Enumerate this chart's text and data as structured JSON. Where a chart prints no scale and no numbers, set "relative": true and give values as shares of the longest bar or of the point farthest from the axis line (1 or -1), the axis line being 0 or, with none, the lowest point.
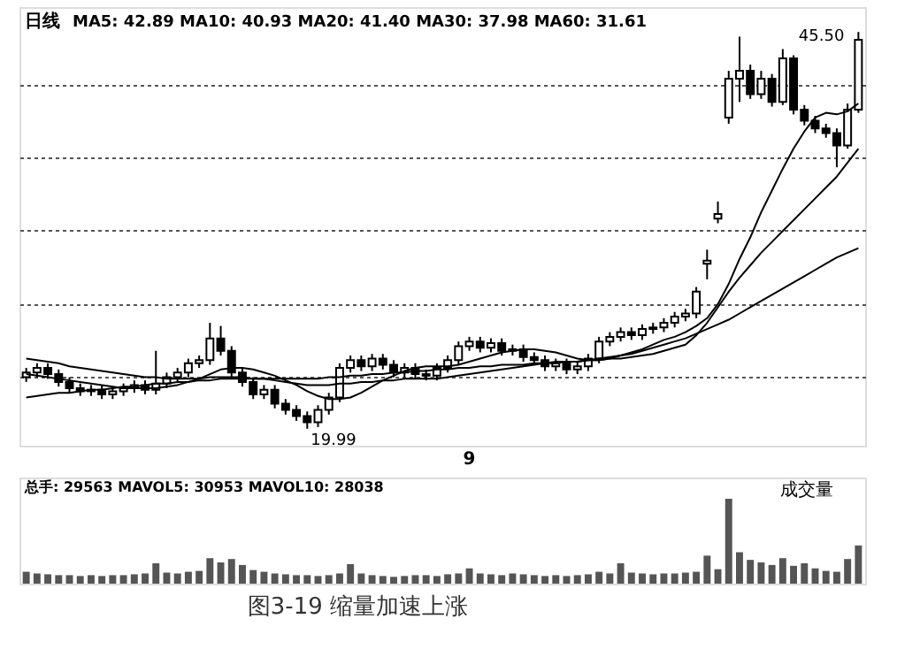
{
  "chart_data": [
    {
      "type": "candlestick",
      "title": "日线",
      "subtitle": "MA5: 42.89 MA10: 40.93 MA20: 41.40 MA30: 37.98 MA60: 31.61",
      "categories": [
        null,
        null,
        null,
        null,
        null,
        null,
        null,
        null,
        null,
        null,
        null,
        null,
        null,
        null,
        null,
        null,
        null,
        null,
        null,
        null,
        null,
        null,
        null,
        null,
        null,
        null,
        null,
        null,
        null,
        null,
        null,
        null,
        null,
        null,
        null,
        null,
        null,
        null,
        null,
        null,
        null,
        "9",
        null,
        null,
        null,
        null,
        null,
        null,
        null,
        null,
        null,
        null,
        null,
        null,
        null,
        null,
        null,
        null,
        null,
        null,
        null,
        null,
        null,
        null,
        null,
        null,
        null,
        null,
        null,
        null,
        null,
        null,
        null,
        null,
        null,
        null,
        null,
        null
      ],
      "ohlc": [
        [
          23.3,
          23.9,
          23.0,
          23.6
        ],
        [
          23.6,
          24.2,
          23.3,
          23.9
        ],
        [
          23.9,
          24.2,
          23.2,
          23.5
        ],
        [
          23.5,
          23.8,
          22.7,
          23.0
        ],
        [
          23.0,
          23.3,
          22.3,
          22.6
        ],
        [
          22.6,
          22.9,
          22.1,
          22.4
        ],
        [
          22.4,
          22.8,
          22.1,
          22.5
        ],
        [
          22.5,
          22.8,
          21.9,
          22.2
        ],
        [
          22.2,
          22.7,
          21.9,
          22.4
        ],
        [
          22.4,
          22.9,
          22.1,
          22.6
        ],
        [
          22.6,
          23.1,
          22.3,
          22.8
        ],
        [
          22.8,
          23.1,
          22.2,
          22.5
        ],
        [
          22.5,
          25.0,
          22.2,
          22.9
        ],
        [
          22.9,
          23.6,
          22.6,
          23.3
        ],
        [
          23.3,
          23.9,
          23.0,
          23.6
        ],
        [
          23.6,
          24.5,
          23.3,
          24.2
        ],
        [
          24.2,
          24.7,
          23.9,
          24.4
        ],
        [
          24.4,
          26.8,
          24.1,
          25.8
        ],
        [
          25.8,
          26.6,
          24.7,
          25.0
        ],
        [
          25.0,
          25.3,
          23.3,
          23.6
        ],
        [
          23.6,
          23.9,
          22.7,
          23.0
        ],
        [
          23.0,
          23.3,
          21.9,
          22.2
        ],
        [
          22.2,
          22.8,
          21.9,
          22.5
        ],
        [
          22.5,
          22.8,
          21.3,
          21.6
        ],
        [
          21.6,
          21.9,
          20.9,
          21.2
        ],
        [
          21.2,
          21.5,
          20.5,
          20.8
        ],
        [
          20.8,
          21.1,
          19.99,
          20.4
        ],
        [
          20.4,
          21.5,
          20.1,
          21.2
        ],
        [
          21.2,
          22.3,
          20.9,
          22.0
        ],
        [
          22.0,
          24.2,
          21.7,
          23.9
        ],
        [
          23.9,
          24.7,
          23.6,
          24.4
        ],
        [
          24.4,
          24.7,
          23.7,
          24.0
        ],
        [
          24.0,
          24.8,
          23.7,
          24.5
        ],
        [
          24.5,
          24.8,
          23.8,
          24.1
        ],
        [
          24.1,
          24.4,
          23.3,
          23.6
        ],
        [
          23.6,
          24.2,
          23.3,
          23.9
        ],
        [
          23.9,
          24.2,
          23.2,
          23.5
        ],
        [
          23.5,
          23.8,
          23.1,
          23.4
        ],
        [
          23.4,
          24.2,
          23.1,
          23.9
        ],
        [
          23.9,
          24.7,
          23.6,
          24.4
        ],
        [
          24.4,
          25.6,
          24.1,
          25.3
        ],
        [
          25.3,
          25.9,
          25.0,
          25.6
        ],
        [
          25.6,
          25.9,
          24.9,
          25.2
        ],
        [
          25.2,
          25.8,
          24.9,
          25.5
        ],
        [
          25.5,
          25.8,
          24.7,
          25.0
        ],
        [
          25.0,
          25.4,
          24.7,
          25.1
        ],
        [
          25.1,
          25.4,
          24.3,
          24.6
        ],
        [
          24.6,
          24.9,
          24.1,
          24.4
        ],
        [
          24.4,
          24.7,
          23.7,
          24.0
        ],
        [
          24.0,
          24.5,
          23.7,
          24.2
        ],
        [
          24.2,
          24.5,
          23.5,
          23.8
        ],
        [
          23.8,
          24.3,
          23.5,
          24.0
        ],
        [
          24.0,
          24.8,
          23.7,
          24.5
        ],
        [
          24.5,
          25.9,
          24.2,
          25.6
        ],
        [
          25.6,
          26.2,
          25.3,
          25.9
        ],
        [
          25.9,
          26.5,
          25.6,
          26.2
        ],
        [
          26.2,
          26.5,
          25.7,
          26.0
        ],
        [
          26.0,
          26.7,
          25.7,
          26.4
        ],
        [
          26.4,
          26.8,
          26.1,
          26.5
        ],
        [
          26.5,
          27.1,
          26.2,
          26.8
        ],
        [
          26.8,
          27.5,
          26.5,
          27.2
        ],
        [
          27.2,
          27.7,
          26.9,
          27.4
        ],
        [
          27.4,
          29.1,
          27.1,
          28.8
        ],
        [
          30.6,
          31.5,
          29.6,
          30.8
        ],
        [
          33.5,
          34.6,
          33.2,
          33.8
        ],
        [
          40.0,
          43.0,
          39.6,
          42.5
        ],
        [
          42.5,
          45.2,
          41.0,
          43.0
        ],
        [
          43.0,
          43.4,
          41.2,
          41.5
        ],
        [
          41.5,
          43.0,
          41.2,
          42.5
        ],
        [
          42.5,
          42.8,
          40.7,
          41.0
        ],
        [
          41.0,
          44.4,
          40.8,
          43.8
        ],
        [
          43.8,
          44.0,
          40.2,
          40.5
        ],
        [
          40.5,
          40.8,
          39.5,
          39.8
        ],
        [
          39.8,
          40.1,
          39.0,
          39.3
        ],
        [
          39.3,
          39.6,
          38.7,
          39.0
        ],
        [
          39.0,
          39.3,
          36.8,
          38.2
        ],
        [
          38.2,
          40.9,
          38.0,
          40.5
        ],
        [
          40.5,
          45.5,
          40.3,
          45.0
        ]
      ],
      "series": [
        {
          "type": "line",
          "color": "#000000",
          "values": [
            23.5,
            23.4,
            23.3,
            23.2,
            23.1,
            23.0,
            22.9,
            22.8,
            22.7,
            22.6,
            22.6,
            22.6,
            22.6,
            22.7,
            22.8,
            23.0,
            23.2,
            23.5,
            23.8,
            23.9,
            23.9,
            23.8,
            23.6,
            23.4,
            23.1,
            22.8,
            22.4,
            22.1,
            21.9,
            21.9,
            22.0,
            22.3,
            22.7,
            23.1,
            23.4,
            23.7,
            23.9,
            24.0,
            24.0,
            24.0,
            24.1,
            24.3,
            24.5,
            24.7,
            24.9,
            25.0,
            25.1,
            25.1,
            25.0,
            24.9,
            24.7,
            24.5,
            24.4,
            24.4,
            24.5,
            24.7,
            24.9,
            25.1,
            25.4,
            25.7,
            25.9,
            26.2,
            26.6,
            27.1,
            28.0,
            29.3,
            30.9,
            32.3,
            33.9,
            35.3,
            36.7,
            38.0,
            39.1,
            40.0,
            40.3,
            40.2,
            40.4,
            40.9
          ]
        },
        {
          "type": "line",
          "color": "#000000",
          "values": [
            24.5,
            24.4,
            24.3,
            24.2,
            24.0,
            23.9,
            23.8,
            23.7,
            23.6,
            23.5,
            23.4,
            23.3,
            23.3,
            23.2,
            23.2,
            23.2,
            23.2,
            23.3,
            23.3,
            23.3,
            23.3,
            23.2,
            23.2,
            23.1,
            23.0,
            22.9,
            22.8,
            22.8,
            22.8,
            22.9,
            22.9,
            23.0,
            23.0,
            23.1,
            23.1,
            23.2,
            23.2,
            23.2,
            23.2,
            23.3,
            23.4,
            23.5,
            23.6,
            23.7,
            23.8,
            23.9,
            24.0,
            24.1,
            24.2,
            24.3,
            24.3,
            24.3,
            24.4,
            24.4,
            24.5,
            24.5,
            24.6,
            24.7,
            24.8,
            25.0,
            25.2,
            25.4,
            26.0,
            26.8,
            27.8,
            28.8,
            29.7,
            30.5,
            31.3,
            32.0,
            32.7,
            33.4,
            34.1,
            34.8,
            35.5,
            36.2,
            37.1,
            38.0
          ]
        },
        {
          "type": "line",
          "color": "#000000",
          "values": [
            22.0,
            22.1,
            22.2,
            22.3,
            22.3,
            22.4,
            22.5,
            22.5,
            22.6,
            22.7,
            22.7,
            22.8,
            22.9,
            22.9,
            23.0,
            23.0,
            23.1,
            23.1,
            23.2,
            23.2,
            23.2,
            23.2,
            23.2,
            23.2,
            23.2,
            23.2,
            23.2,
            23.2,
            23.3,
            23.3,
            23.4,
            23.4,
            23.5,
            23.5,
            23.6,
            23.6,
            23.7,
            23.7,
            23.8,
            23.8,
            23.9,
            23.9,
            24.0,
            24.0,
            24.1,
            24.1,
            24.1,
            24.2,
            24.2,
            24.2,
            24.3,
            24.3,
            24.4,
            24.5,
            24.6,
            24.7,
            24.8,
            25.0,
            25.2,
            25.4,
            25.6,
            25.8,
            26.1,
            26.4,
            26.7,
            27.0,
            27.4,
            27.8,
            28.2,
            28.6,
            29.0,
            29.4,
            29.8,
            30.2,
            30.6,
            31.0,
            31.3,
            31.6
          ]
        }
      ],
      "ylim": [
        18.9,
        47.1
      ],
      "yticks": [
        {
          "value": 23.3,
          "label": null
        },
        {
          "value": 28.0,
          "label": null
        },
        {
          "value": 32.8,
          "label": null
        },
        {
          "value": 37.4,
          "label": null
        },
        {
          "value": 42.1,
          "label": null
        }
      ],
      "grid": "y",
      "tick_labels": "x",
      "annotations": [
        "45.50",
        "19.99"
      ]
    },
    {
      "type": "bar",
      "title": "总手: 29563 MAVOL5: 30953 MAVOL10: 28038",
      "relative": true,
      "color": "#555555",
      "tick_labels": false,
      "categories": [
        null,
        null,
        null,
        null,
        null,
        null,
        null,
        null,
        null,
        null,
        null,
        null,
        null,
        null,
        null,
        null,
        null,
        null,
        null,
        null,
        null,
        null,
        null,
        null,
        null,
        null,
        null,
        null,
        null,
        null,
        null,
        null,
        null,
        null,
        null,
        null,
        null,
        null,
        null,
        null,
        null,
        null,
        null,
        null,
        null,
        null,
        null,
        null,
        null,
        null,
        null,
        null,
        null,
        null,
        null,
        null,
        null,
        null,
        null,
        null,
        null,
        null,
        null,
        null,
        null,
        null,
        null,
        null,
        null,
        null,
        null,
        null,
        null,
        null,
        null,
        null,
        null,
        null
      ],
      "values": [
        0.14,
        0.12,
        0.11,
        0.1,
        0.1,
        0.09,
        0.1,
        0.09,
        0.1,
        0.1,
        0.11,
        0.12,
        0.24,
        0.13,
        0.12,
        0.14,
        0.15,
        0.3,
        0.25,
        0.29,
        0.22,
        0.16,
        0.14,
        0.12,
        0.11,
        0.1,
        0.1,
        0.09,
        0.1,
        0.12,
        0.23,
        0.12,
        0.1,
        0.09,
        0.08,
        0.09,
        0.1,
        0.1,
        0.09,
        0.11,
        0.12,
        0.18,
        0.12,
        0.11,
        0.1,
        0.12,
        0.11,
        0.1,
        0.09,
        0.1,
        0.09,
        0.1,
        0.11,
        0.14,
        0.12,
        0.24,
        0.13,
        0.12,
        0.11,
        0.12,
        0.12,
        0.13,
        0.14,
        0.33,
        0.17,
        1,
        0.37,
        0.28,
        0.25,
        0.22,
        0.3,
        0.21,
        0.24,
        0.18,
        0.15,
        0.14,
        0.29,
        0.45
      ],
      "annotations": [
        "成交量",
        "图3-19 缩量加速上涨"
      ]
    }
  ]
}
